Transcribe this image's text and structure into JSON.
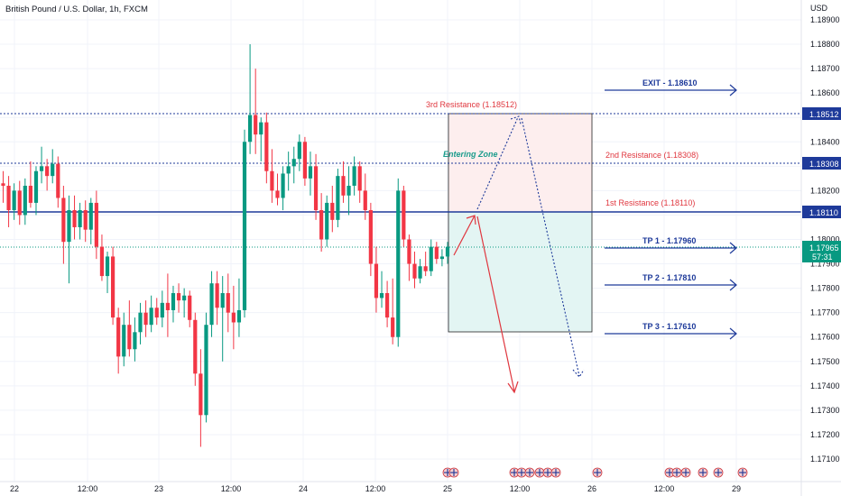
{
  "header": {
    "title": "British Pound / U.S. Dollar, 1h, FXCM",
    "currency": "USD"
  },
  "price_tags": {
    "res3": "1.18512",
    "res2": "1.18308",
    "res1": "1.18110",
    "last_price": "1.17965",
    "countdown": "57:31"
  },
  "annotations": {
    "res3_label": "3rd Resistance (1.18512)",
    "res2_label": "2nd Resistance (1.18308)",
    "res1_label": "1st Resistance (1.18110)",
    "entering_zone": "Entering Zone",
    "exit_label": "EXIT - 1.18610",
    "tp1_label": "TP 1 - 1.17960",
    "tp2_label": "TP 2 - 1.17810",
    "tp3_label": "TP 3 - 1.17610"
  },
  "colors": {
    "up": "#089981",
    "down": "#f23645",
    "blue_line": "#1e3a9a",
    "resistance": "#e0373f",
    "zone_red": "#fdeeee",
    "zone_green": "#e3f5f3",
    "last_price": "#089981"
  },
  "chart_data": {
    "type": "candlestick",
    "symbol": "British Pound / U.S. Dollar, 1h, FXCM",
    "ylabel": "USD",
    "ylim": [
      1.17,
      1.1895
    ],
    "y_ticks": [
      "1.18900",
      "1.18800",
      "1.18700",
      "1.18600",
      "1.18500",
      "1.18400",
      "1.18300",
      "1.18200",
      "1.18100",
      "1.18000",
      "1.17900",
      "1.17800",
      "1.17700",
      "1.17600",
      "1.17500",
      "1.17400",
      "1.17300",
      "1.17200",
      "1.17100"
    ],
    "x_ticks": [
      "22",
      "12:00",
      "23",
      "12:00",
      "24",
      "12:00",
      "25",
      "12:00",
      "26",
      "12:00",
      "29"
    ],
    "levels": [
      {
        "name": "3rd Resistance",
        "value": 1.18512
      },
      {
        "name": "2nd Resistance",
        "value": 1.18308
      },
      {
        "name": "1st Resistance",
        "value": 1.1811
      }
    ],
    "targets": [
      {
        "name": "EXIT",
        "value": 1.1861
      },
      {
        "name": "TP 1",
        "value": 1.1796
      },
      {
        "name": "TP 2",
        "value": 1.1781
      },
      {
        "name": "TP 3",
        "value": 1.1761
      }
    ],
    "last_price": 1.17965,
    "candles": [
      {
        "o": 1.1823,
        "h": 1.1828,
        "l": 1.1815,
        "c": 1.1822
      },
      {
        "o": 1.1822,
        "h": 1.1826,
        "l": 1.1805,
        "c": 1.1812
      },
      {
        "o": 1.1812,
        "h": 1.1823,
        "l": 1.1808,
        "c": 1.182
      },
      {
        "o": 1.182,
        "h": 1.1824,
        "l": 1.1806,
        "c": 1.181
      },
      {
        "o": 1.181,
        "h": 1.1825,
        "l": 1.1806,
        "c": 1.1822
      },
      {
        "o": 1.1822,
        "h": 1.1832,
        "l": 1.1813,
        "c": 1.1815
      },
      {
        "o": 1.1815,
        "h": 1.183,
        "l": 1.181,
        "c": 1.1828
      },
      {
        "o": 1.1828,
        "h": 1.1838,
        "l": 1.1823,
        "c": 1.183
      },
      {
        "o": 1.183,
        "h": 1.1833,
        "l": 1.182,
        "c": 1.1826
      },
      {
        "o": 1.1826,
        "h": 1.1837,
        "l": 1.1823,
        "c": 1.1831
      },
      {
        "o": 1.1831,
        "h": 1.1834,
        "l": 1.1813,
        "c": 1.1817
      },
      {
        "o": 1.1817,
        "h": 1.1822,
        "l": 1.179,
        "c": 1.1799
      },
      {
        "o": 1.1799,
        "h": 1.1818,
        "l": 1.1782,
        "c": 1.1812
      },
      {
        "o": 1.1812,
        "h": 1.1818,
        "l": 1.18,
        "c": 1.1805
      },
      {
        "o": 1.1805,
        "h": 1.1815,
        "l": 1.18,
        "c": 1.1812
      },
      {
        "o": 1.1812,
        "h": 1.1816,
        "l": 1.1799,
        "c": 1.1804
      },
      {
        "o": 1.1804,
        "h": 1.1817,
        "l": 1.1798,
        "c": 1.1815
      },
      {
        "o": 1.1815,
        "h": 1.182,
        "l": 1.1792,
        "c": 1.1797
      },
      {
        "o": 1.1797,
        "h": 1.1802,
        "l": 1.1783,
        "c": 1.1785
      },
      {
        "o": 1.1785,
        "h": 1.1795,
        "l": 1.1778,
        "c": 1.1793
      },
      {
        "o": 1.1793,
        "h": 1.1797,
        "l": 1.1765,
        "c": 1.1768
      },
      {
        "o": 1.1768,
        "h": 1.1772,
        "l": 1.1745,
        "c": 1.1752
      },
      {
        "o": 1.1752,
        "h": 1.177,
        "l": 1.1748,
        "c": 1.1765
      },
      {
        "o": 1.1765,
        "h": 1.1775,
        "l": 1.1752,
        "c": 1.1755
      },
      {
        "o": 1.1755,
        "h": 1.1768,
        "l": 1.175,
        "c": 1.1762
      },
      {
        "o": 1.1762,
        "h": 1.1774,
        "l": 1.1757,
        "c": 1.177
      },
      {
        "o": 1.177,
        "h": 1.1775,
        "l": 1.176,
        "c": 1.1765
      },
      {
        "o": 1.1765,
        "h": 1.1777,
        "l": 1.1762,
        "c": 1.1772
      },
      {
        "o": 1.1772,
        "h": 1.1776,
        "l": 1.1765,
        "c": 1.1768
      },
      {
        "o": 1.1768,
        "h": 1.1779,
        "l": 1.1764,
        "c": 1.1774
      },
      {
        "o": 1.1774,
        "h": 1.1786,
        "l": 1.176,
        "c": 1.1771
      },
      {
        "o": 1.1771,
        "h": 1.1781,
        "l": 1.1766,
        "c": 1.1778
      },
      {
        "o": 1.1778,
        "h": 1.1782,
        "l": 1.177,
        "c": 1.1775
      },
      {
        "o": 1.1775,
        "h": 1.178,
        "l": 1.1768,
        "c": 1.1777
      },
      {
        "o": 1.1777,
        "h": 1.1779,
        "l": 1.1764,
        "c": 1.1767
      },
      {
        "o": 1.1767,
        "h": 1.177,
        "l": 1.174,
        "c": 1.1745
      },
      {
        "o": 1.1745,
        "h": 1.1755,
        "l": 1.1715,
        "c": 1.1728
      },
      {
        "o": 1.1728,
        "h": 1.177,
        "l": 1.1725,
        "c": 1.1765
      },
      {
        "o": 1.1765,
        "h": 1.1787,
        "l": 1.176,
        "c": 1.1782
      },
      {
        "o": 1.1782,
        "h": 1.1787,
        "l": 1.1765,
        "c": 1.1772
      },
      {
        "o": 1.1772,
        "h": 1.1785,
        "l": 1.175,
        "c": 1.1778
      },
      {
        "o": 1.1778,
        "h": 1.1786,
        "l": 1.1762,
        "c": 1.177
      },
      {
        "o": 1.177,
        "h": 1.1781,
        "l": 1.1755,
        "c": 1.1766
      },
      {
        "o": 1.1766,
        "h": 1.1784,
        "l": 1.176,
        "c": 1.1771
      },
      {
        "o": 1.1771,
        "h": 1.1845,
        "l": 1.1768,
        "c": 1.184
      },
      {
        "o": 1.184,
        "h": 1.188,
        "l": 1.1835,
        "c": 1.1851
      },
      {
        "o": 1.1851,
        "h": 1.187,
        "l": 1.1835,
        "c": 1.1843
      },
      {
        "o": 1.1843,
        "h": 1.185,
        "l": 1.1832,
        "c": 1.1848
      },
      {
        "o": 1.1848,
        "h": 1.1852,
        "l": 1.1823,
        "c": 1.1828
      },
      {
        "o": 1.1828,
        "h": 1.1837,
        "l": 1.1815,
        "c": 1.182
      },
      {
        "o": 1.182,
        "h": 1.1827,
        "l": 1.1814,
        "c": 1.1817
      },
      {
        "o": 1.1817,
        "h": 1.183,
        "l": 1.1812,
        "c": 1.1827
      },
      {
        "o": 1.1827,
        "h": 1.1836,
        "l": 1.182,
        "c": 1.183
      },
      {
        "o": 1.183,
        "h": 1.1838,
        "l": 1.1823,
        "c": 1.1833
      },
      {
        "o": 1.1833,
        "h": 1.1843,
        "l": 1.1828,
        "c": 1.184
      },
      {
        "o": 1.184,
        "h": 1.1842,
        "l": 1.1822,
        "c": 1.1825
      },
      {
        "o": 1.1825,
        "h": 1.1836,
        "l": 1.1818,
        "c": 1.183
      },
      {
        "o": 1.183,
        "h": 1.1835,
        "l": 1.1808,
        "c": 1.1812
      },
      {
        "o": 1.1812,
        "h": 1.1819,
        "l": 1.1795,
        "c": 1.18
      },
      {
        "o": 1.18,
        "h": 1.1818,
        "l": 1.1797,
        "c": 1.1815
      },
      {
        "o": 1.1815,
        "h": 1.1822,
        "l": 1.1803,
        "c": 1.1808
      },
      {
        "o": 1.1808,
        "h": 1.1829,
        "l": 1.1805,
        "c": 1.1826
      },
      {
        "o": 1.1826,
        "h": 1.1832,
        "l": 1.1815,
        "c": 1.1818
      },
      {
        "o": 1.1818,
        "h": 1.183,
        "l": 1.181,
        "c": 1.1822
      },
      {
        "o": 1.1822,
        "h": 1.1834,
        "l": 1.1818,
        "c": 1.183
      },
      {
        "o": 1.183,
        "h": 1.1832,
        "l": 1.1815,
        "c": 1.182
      },
      {
        "o": 1.182,
        "h": 1.1827,
        "l": 1.1808,
        "c": 1.1812
      },
      {
        "o": 1.1812,
        "h": 1.1815,
        "l": 1.1785,
        "c": 1.179
      },
      {
        "o": 1.179,
        "h": 1.1797,
        "l": 1.177,
        "c": 1.1776
      },
      {
        "o": 1.1776,
        "h": 1.1787,
        "l": 1.1772,
        "c": 1.1778
      },
      {
        "o": 1.1778,
        "h": 1.1783,
        "l": 1.1764,
        "c": 1.1768
      },
      {
        "o": 1.1768,
        "h": 1.1784,
        "l": 1.1757,
        "c": 1.176
      },
      {
        "o": 1.176,
        "h": 1.1825,
        "l": 1.1756,
        "c": 1.182
      },
      {
        "o": 1.182,
        "h": 1.1822,
        "l": 1.1797,
        "c": 1.18
      },
      {
        "o": 1.18,
        "h": 1.1802,
        "l": 1.1783,
        "c": 1.179
      },
      {
        "o": 1.179,
        "h": 1.1795,
        "l": 1.178,
        "c": 1.1784
      },
      {
        "o": 1.1784,
        "h": 1.1792,
        "l": 1.1782,
        "c": 1.1789
      },
      {
        "o": 1.1789,
        "h": 1.1795,
        "l": 1.1785,
        "c": 1.1787
      },
      {
        "o": 1.1787,
        "h": 1.18,
        "l": 1.1785,
        "c": 1.1797
      },
      {
        "o": 1.1797,
        "h": 1.1799,
        "l": 1.179,
        "c": 1.1792
      },
      {
        "o": 1.1792,
        "h": 1.1796,
        "l": 1.1789,
        "c": 1.1793
      },
      {
        "o": 1.1793,
        "h": 1.1799,
        "l": 1.179,
        "c": 1.1797
      }
    ]
  }
}
